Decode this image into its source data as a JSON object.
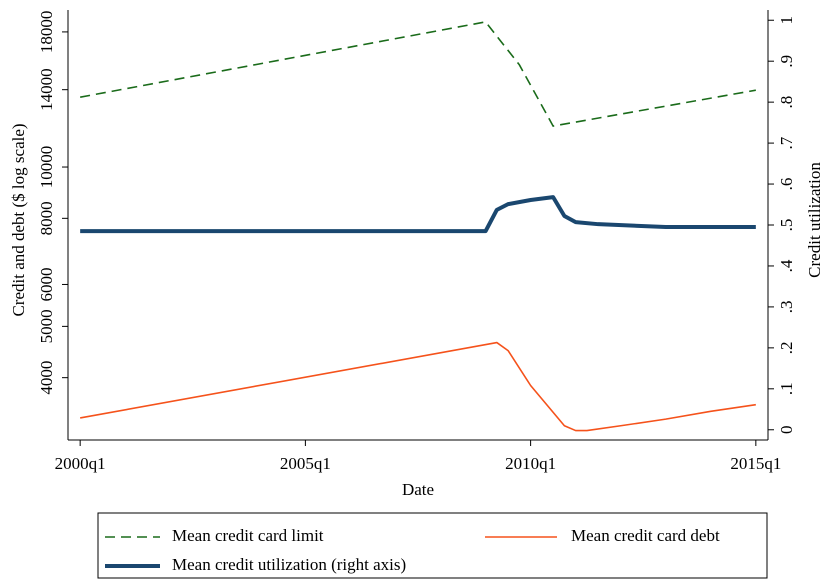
{
  "chart_data": {
    "type": "line",
    "xlabel": "Date",
    "ylabel": "Credit and debt ($ log scale)",
    "y2label": "Credit utilization",
    "xlim": [
      1999.73,
      2015.27
    ],
    "xticks": [
      {
        "value": 2000,
        "label": "2000q1"
      },
      {
        "value": 2005,
        "label": "2005q1"
      },
      {
        "value": 2010,
        "label": "2010q1"
      },
      {
        "value": 2015,
        "label": "2015q1"
      }
    ],
    "ylim": [
      3050,
      19800
    ],
    "ylog": true,
    "yticks": [
      4000,
      5000,
      6000,
      8000,
      10000,
      14000,
      18000
    ],
    "y2lim": [
      -0.025,
      1.025
    ],
    "y2ticks": [
      0,
      {
        "value": 0.1,
        "label": ".1"
      },
      {
        "value": 0.2,
        "label": ".2"
      },
      {
        "value": 0.3,
        "label": ".3"
      },
      {
        "value": 0.4,
        "label": ".4"
      },
      {
        "value": 0.5,
        "label": ".5"
      },
      {
        "value": 0.6,
        "label": ".6"
      },
      {
        "value": 0.7,
        "label": ".7"
      },
      {
        "value": 0.8,
        "label": ".8"
      },
      {
        "value": 0.9,
        "label": ".9"
      },
      1
    ],
    "legend": "bottom",
    "series": [
      {
        "name": "Mean credit card limit",
        "color": "#1a6b1a",
        "line_style": "dashed",
        "width": 1.6,
        "x": [
          2000,
          2009,
          2009.75,
          2010.5,
          2015
        ],
        "values": [
          13550,
          18800,
          15600,
          11950,
          13970
        ]
      },
      {
        "name": "Mean credit card debt",
        "color": "#f5521b",
        "line_style": "solid",
        "width": 1.6,
        "x": [
          2000,
          2009.25,
          2009.5,
          2010,
          2010.75,
          2011,
          2011.25,
          2012,
          2013,
          2014,
          2015
        ],
        "values": [
          3357,
          4660,
          4500,
          3866,
          3245,
          3178,
          3178,
          3245,
          3340,
          3455,
          3557
        ]
      },
      {
        "name": "Mean credit utilization (right axis)",
        "color": "#1a476f",
        "line_style": "solid",
        "width": 4,
        "axis": "y2",
        "x": [
          2000,
          2009,
          2009.25,
          2009.5,
          2010,
          2010.5,
          2010.75,
          2011,
          2011.5,
          2013,
          2015
        ],
        "values": [
          0.485,
          0.485,
          0.537,
          0.551,
          0.561,
          0.568,
          0.522,
          0.507,
          0.502,
          0.495,
          0.495
        ]
      }
    ]
  }
}
